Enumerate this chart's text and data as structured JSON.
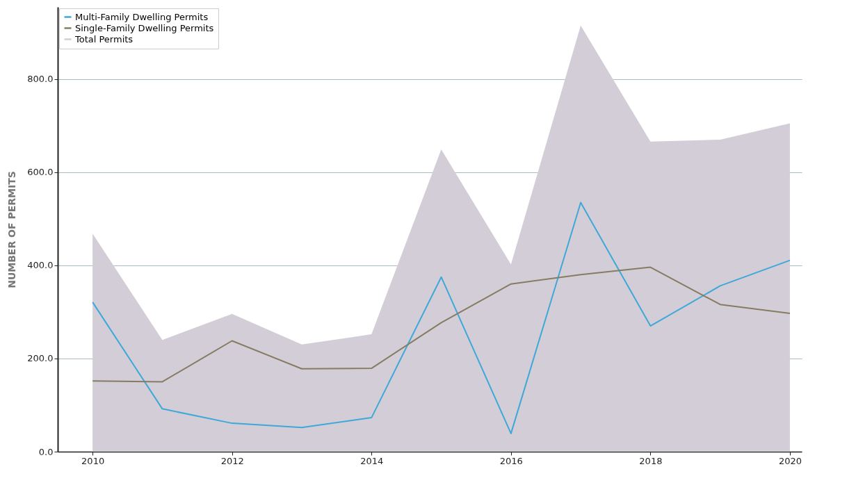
{
  "chart_data": {
    "type": "line",
    "ylabel": "NUMBER OF PERMITS",
    "x": [
      2010,
      2011,
      2012,
      2013,
      2014,
      2015,
      2016,
      2017,
      2018,
      2019,
      2020
    ],
    "series": [
      {
        "name": "Multi-Family Dwelling Permits",
        "type": "line",
        "color": "#3ea8d8",
        "values": [
          321,
          92,
          61,
          52,
          73,
          375,
          39,
          535,
          270,
          356,
          411
        ]
      },
      {
        "name": "Single-Family Dwelling Permits",
        "type": "line",
        "color": "#857c62",
        "values": [
          152,
          150,
          238,
          178,
          179,
          277,
          360,
          380,
          396,
          316,
          297
        ]
      },
      {
        "name": "Total Permits",
        "type": "area",
        "color": "#d3cdd7",
        "values": [
          468,
          240,
          296,
          230,
          252,
          649,
          402,
          915,
          666,
          670,
          705
        ]
      }
    ],
    "xlim": [
      2009.5,
      2020.17
    ],
    "xticks": [
      2010,
      2012,
      2014,
      2016,
      2018,
      2020
    ],
    "ylim": [
      0,
      955
    ],
    "yticks": [
      {
        "value": 0,
        "label": "0.0"
      },
      {
        "value": 200,
        "label": "200.0"
      },
      {
        "value": 400,
        "label": "400.0"
      },
      {
        "value": 600,
        "label": "600.0"
      },
      {
        "value": 800,
        "label": "800.0"
      }
    ],
    "grid": "y",
    "legend": "top left",
    "marker": "none",
    "line_style": "solid"
  }
}
